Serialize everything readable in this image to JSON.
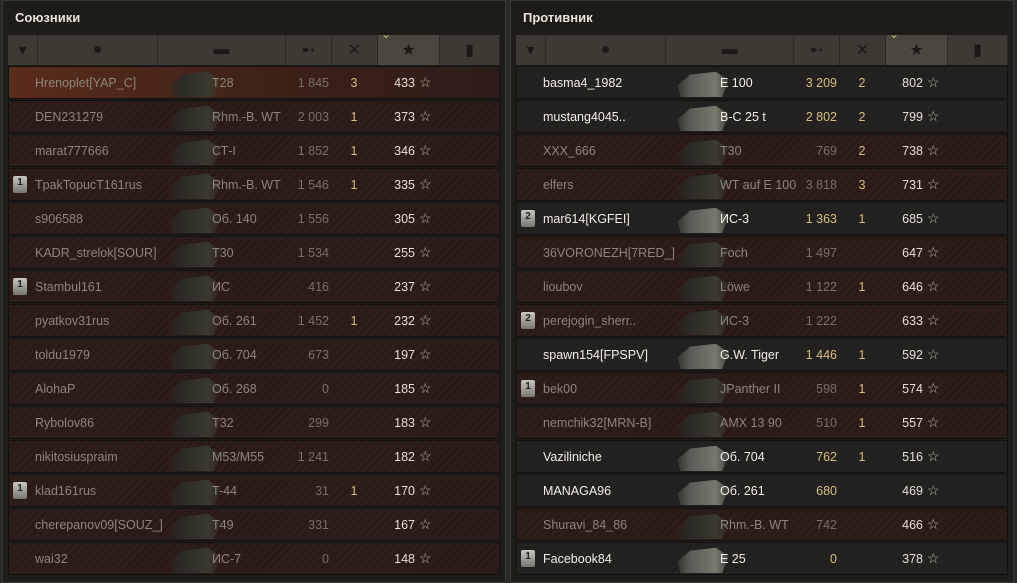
{
  "header_icons": [
    "squad-icon",
    "player-icon",
    "tank-icon",
    "damage-icon",
    "kills-icon",
    "xp-star-icon",
    "medal-icon"
  ],
  "colors": {
    "gold": "#d6bd82",
    "dead_row": "#2e1d18",
    "alive_row": "#242321"
  },
  "allies": {
    "title": "Союзники",
    "rows": [
      {
        "squad": "",
        "name": "Hrenoplet[YAP_C]",
        "tank": "T28",
        "damage": "1 845",
        "kills": "3",
        "xp": "433",
        "alive": false,
        "self": true
      },
      {
        "squad": "",
        "name": "DEN231279",
        "tank": "Rhm.-B. WT",
        "damage": "2 003",
        "kills": "1",
        "xp": "373",
        "alive": false
      },
      {
        "squad": "",
        "name": "marat777666",
        "tank": "СТ-I",
        "damage": "1 852",
        "kills": "1",
        "xp": "346",
        "alive": false
      },
      {
        "squad": "1",
        "name": "TpakTopucT161rus",
        "tank": "Rhm.-B. WT",
        "damage": "1 546",
        "kills": "1",
        "xp": "335",
        "alive": false
      },
      {
        "squad": "",
        "name": "s906588",
        "tank": "Об. 140",
        "damage": "1 556",
        "kills": "",
        "xp": "305",
        "alive": false
      },
      {
        "squad": "",
        "name": "KADR_strelok[SOUR]",
        "tank": "T30",
        "damage": "1 534",
        "kills": "",
        "xp": "255",
        "alive": false
      },
      {
        "squad": "1",
        "name": "Stambul161",
        "tank": "ИС",
        "damage": "416",
        "kills": "",
        "xp": "237",
        "alive": false
      },
      {
        "squad": "",
        "name": "pyatkov31rus",
        "tank": "Об. 261",
        "damage": "1 452",
        "kills": "1",
        "xp": "232",
        "alive": false
      },
      {
        "squad": "",
        "name": "toldu1979",
        "tank": "Об. 704",
        "damage": "673",
        "kills": "",
        "xp": "197",
        "alive": false
      },
      {
        "squad": "",
        "name": "AlohaP",
        "tank": "Об. 268",
        "damage": "0",
        "kills": "",
        "xp": "185",
        "alive": false
      },
      {
        "squad": "",
        "name": "Rybolov86",
        "tank": "T32",
        "damage": "299",
        "kills": "",
        "xp": "183",
        "alive": false
      },
      {
        "squad": "",
        "name": "nikitosiuspraim",
        "tank": "M53/M55",
        "damage": "1 241",
        "kills": "",
        "xp": "182",
        "alive": false
      },
      {
        "squad": "1",
        "name": "klad161rus",
        "tank": "T-44",
        "damage": "31",
        "kills": "1",
        "xp": "170",
        "alive": false
      },
      {
        "squad": "",
        "name": "cherepanov09[SOUZ_]",
        "tank": "T49",
        "damage": "331",
        "kills": "",
        "xp": "167",
        "alive": false
      },
      {
        "squad": "",
        "name": "wai32",
        "tank": "ИС-7",
        "damage": "0",
        "kills": "",
        "xp": "148",
        "alive": false
      }
    ]
  },
  "enemies": {
    "title": "Противник",
    "rows": [
      {
        "squad": "",
        "name": "basma4_1982",
        "tank": "E 100",
        "damage": "3 209",
        "kills": "2",
        "xp": "802",
        "alive": true
      },
      {
        "squad": "",
        "name": "mustang4045..",
        "tank": "B-C 25 t",
        "damage": "2 802",
        "kills": "2",
        "xp": "799",
        "alive": true
      },
      {
        "squad": "",
        "name": "XXX_666",
        "tank": "T30",
        "damage": "769",
        "kills": "2",
        "xp": "738",
        "alive": false
      },
      {
        "squad": "",
        "name": "elfers",
        "tank": "WT auf E 100",
        "damage": "3 818",
        "kills": "3",
        "xp": "731",
        "alive": false
      },
      {
        "squad": "2",
        "name": "mar614[KGFEI]",
        "tank": "ИС-3",
        "damage": "1 363",
        "kills": "1",
        "xp": "685",
        "alive": true
      },
      {
        "squad": "",
        "name": "36VORONEZH[7RED_]",
        "tank": "Foch",
        "damage": "1 497",
        "kills": "",
        "xp": "647",
        "alive": false
      },
      {
        "squad": "",
        "name": "lioubov",
        "tank": "Löwe",
        "damage": "1 122",
        "kills": "1",
        "xp": "646",
        "alive": false
      },
      {
        "squad": "2",
        "name": "perejogin_sherr..",
        "tank": "ИС-3",
        "damage": "1 222",
        "kills": "",
        "xp": "633",
        "alive": false
      },
      {
        "squad": "",
        "name": "spawn154[FPSPV]",
        "tank": "G.W. Tiger",
        "damage": "1 446",
        "kills": "1",
        "xp": "592",
        "alive": true
      },
      {
        "squad": "1",
        "name": "bek00",
        "tank": "JPanther II",
        "damage": "598",
        "kills": "1",
        "xp": "574",
        "alive": false
      },
      {
        "squad": "",
        "name": "nemchik32[MRN-B]",
        "tank": "AMX 13 90",
        "damage": "510",
        "kills": "1",
        "xp": "557",
        "alive": false
      },
      {
        "squad": "",
        "name": "Vaziliniche",
        "tank": "Об. 704",
        "damage": "762",
        "kills": "1",
        "xp": "516",
        "alive": true
      },
      {
        "squad": "",
        "name": "MANAGA96",
        "tank": "Об. 261",
        "damage": "680",
        "kills": "",
        "xp": "469",
        "alive": true
      },
      {
        "squad": "",
        "name": "Shuravi_84_86",
        "tank": "Rhm.-B. WT",
        "damage": "742",
        "kills": "",
        "xp": "466",
        "alive": false
      },
      {
        "squad": "1",
        "name": "Facebook84",
        "tank": "E 25",
        "damage": "0",
        "kills": "",
        "xp": "378",
        "alive": true
      }
    ]
  }
}
